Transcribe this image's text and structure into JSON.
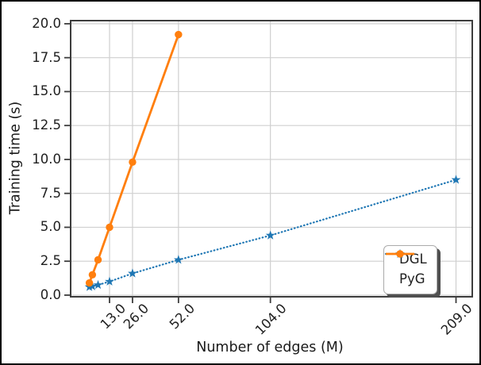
{
  "figure": {
    "background": "#ffffff",
    "frame_color": "#000000"
  },
  "chart_data": {
    "type": "line",
    "title": "",
    "xlabel": "Number of edges (M)",
    "ylabel": "Training time (s)",
    "xlim": [
      -9,
      218.2
    ],
    "ylim": [
      -0.12,
      20.23
    ],
    "grid": true,
    "legend_position": "lower right",
    "x_ticks": [
      13,
      26,
      52,
      104,
      209
    ],
    "x_tick_labels": [
      "13.0",
      "26.0",
      "52.0",
      "104.0",
      "209.0"
    ],
    "y_ticks": [
      0,
      2.5,
      5,
      7.5,
      10,
      12.5,
      15,
      17.5,
      20
    ],
    "y_tick_labels": [
      "0.0",
      "2.5",
      "5.0",
      "7.5",
      "10.0",
      "12.5",
      "15.0",
      "17.5",
      "20.0"
    ],
    "colors": {
      "grid": "#cfcfcf",
      "spine": "#3d3d3d",
      "text": "#1f1f1f",
      "legend_border": "#ababab",
      "legend_shadow": "#4f4f4f"
    },
    "series": [
      {
        "name": "DGL",
        "color": "#1f77b4",
        "line_style": "dotted",
        "marker": "star",
        "x": [
          1.6,
          3.3,
          6.5,
          13,
          26,
          52,
          104,
          209
        ],
        "y": [
          0.6,
          0.65,
          0.75,
          1.0,
          1.6,
          2.6,
          4.4,
          8.5
        ]
      },
      {
        "name": "PyG",
        "color": "#ff7f0e",
        "line_style": "solid",
        "marker": "circle",
        "x": [
          1.6,
          3.3,
          6.5,
          13,
          26,
          52
        ],
        "y": [
          0.9,
          1.5,
          2.6,
          5.0,
          9.8,
          19.2
        ]
      }
    ]
  }
}
